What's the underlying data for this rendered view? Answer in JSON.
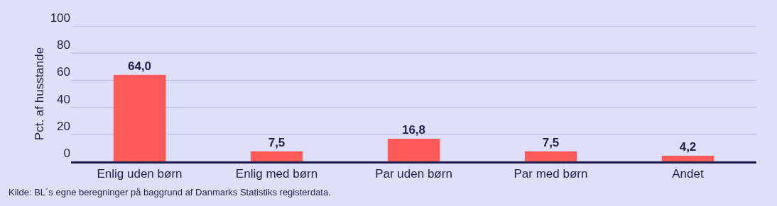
{
  "chart_data": {
    "type": "bar",
    "ylabel": "Pct. af husstande",
    "categories": [
      "Enlig uden børn",
      "Enlig med børn",
      "Par uden børn",
      "Par med børn",
      "Andet"
    ],
    "values": [
      64.0,
      7.5,
      16.8,
      7.5,
      4.2
    ],
    "value_labels": [
      "64,0",
      "7,5",
      "16,8",
      "7,5",
      "4,2"
    ],
    "color": "#ff5a5a",
    "ylim": [
      0,
      100
    ],
    "yticks": [
      0,
      20,
      40,
      60,
      80,
      100
    ],
    "grid": "y",
    "legend": false,
    "annotations": [
      "Kilde: BL´s egne beregninger på baggrund af Danmarks Statistiks registerdata."
    ]
  }
}
